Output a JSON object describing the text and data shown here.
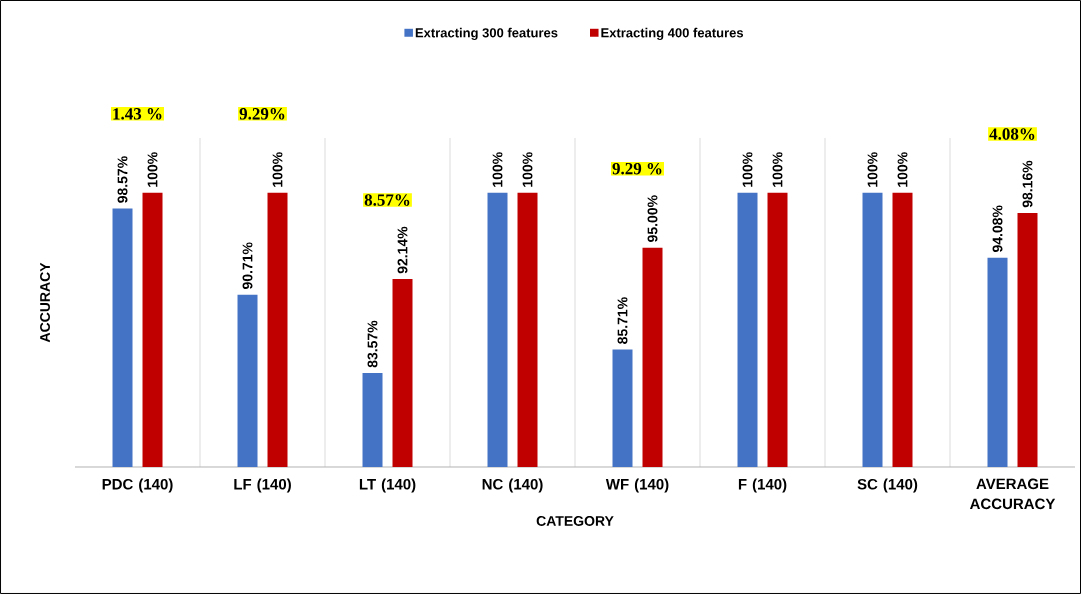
{
  "chart_data": {
    "type": "bar",
    "xlabel": "CATEGORY",
    "ylabel": "ACCURACY",
    "categories": [
      "PDC (140)",
      "LF (140)",
      "LT (140)",
      "NC (140)",
      "WF (140)",
      "F (140)",
      "SC (140)",
      "AVERAGE ACCURACY"
    ],
    "series": [
      {
        "name": "Extracting 300 features",
        "color": "#4472c4",
        "values": [
          98.57,
          90.71,
          83.57,
          100,
          85.71,
          100,
          100,
          94.08
        ],
        "value_labels": [
          "98.57%",
          "90.71%",
          "83.57%",
          "100%",
          "85.71%",
          "100%",
          "100%",
          "94.08%"
        ]
      },
      {
        "name": "Extracting 400 features",
        "color": "#c00000",
        "values": [
          100,
          100,
          92.14,
          100,
          95.0,
          100,
          100,
          98.16
        ],
        "value_labels": [
          "100%",
          "100%",
          "92.14%",
          "100%",
          "95.00%",
          "100%",
          "100%",
          "98.16%"
        ]
      }
    ],
    "ylim": [
      75,
      105
    ],
    "grid": "x",
    "legend": "top",
    "annotations": [
      "1.43 %",
      "9.29%",
      "8.57%",
      "9.29 %",
      "4.08%"
    ]
  }
}
